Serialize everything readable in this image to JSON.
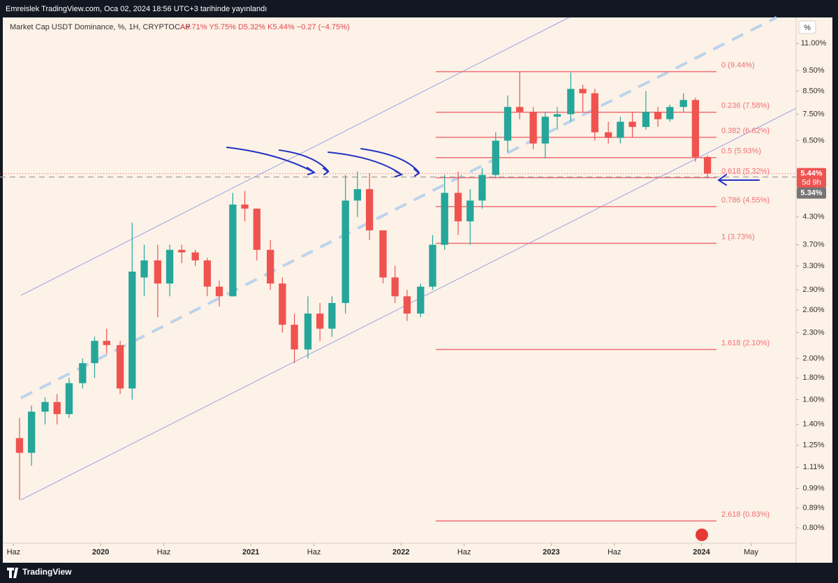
{
  "header": {
    "text": "Emreislek TradingView.com, Oca 02, 2024 18:56 UTC+3 tarihinde yayınlandı"
  },
  "chart_data": {
    "type": "candlestick",
    "symbol": "Market Cap USDT Dominance, %, 1H, CRYPTOCAP",
    "ohlc_text": "A5.71% Y5.75% D5.32% K5.44% −0.27 (−4.75%)",
    "unit": "%",
    "log_scale": true,
    "x": [
      2019.46,
      2019.54,
      2019.63,
      2019.71,
      2019.79,
      2019.88,
      2019.96,
      2020.04,
      2020.13,
      2020.21,
      2020.29,
      2020.38,
      2020.46,
      2020.54,
      2020.63,
      2020.71,
      2020.79,
      2020.88,
      2020.96,
      2021.04,
      2021.13,
      2021.21,
      2021.29,
      2021.38,
      2021.46,
      2021.54,
      2021.63,
      2021.71,
      2021.79,
      2021.88,
      2021.96,
      2022.04,
      2022.13,
      2022.21,
      2022.29,
      2022.38,
      2022.46,
      2022.54,
      2022.63,
      2022.71,
      2022.79,
      2022.88,
      2022.96,
      2023.04,
      2023.13,
      2023.21,
      2023.29,
      2023.38,
      2023.46,
      2023.54,
      2023.63,
      2023.71,
      2023.79,
      2023.88,
      2023.96,
      2024.04
    ],
    "open": [
      1.3,
      1.2,
      1.5,
      1.58,
      1.48,
      1.75,
      1.95,
      2.2,
      2.15,
      1.7,
      3.1,
      3.4,
      3.0,
      3.6,
      3.55,
      3.4,
      2.95,
      2.8,
      4.6,
      4.5,
      3.6,
      3.0,
      2.4,
      2.1,
      2.55,
      2.35,
      2.7,
      4.7,
      5.0,
      4.0,
      3.1,
      2.8,
      2.55,
      2.95,
      3.7,
      4.9,
      4.2,
      4.7,
      5.4,
      6.5,
      7.8,
      7.6,
      6.4,
      7.4,
      7.5,
      8.6,
      8.4,
      6.8,
      6.6,
      7.2,
      7.0,
      7.6,
      7.3,
      7.8,
      8.1,
      5.95
    ],
    "high": [
      1.45,
      1.55,
      1.62,
      1.65,
      1.8,
      2.0,
      2.25,
      2.35,
      2.2,
      4.17,
      3.7,
      3.7,
      3.7,
      3.7,
      3.6,
      3.45,
      3.05,
      4.9,
      4.95,
      4.5,
      3.8,
      3.1,
      2.55,
      2.8,
      2.7,
      2.8,
      5.4,
      5.5,
      5.45,
      4.0,
      3.3,
      2.9,
      3.0,
      3.9,
      5.4,
      5.5,
      5.0,
      5.6,
      6.8,
      8.3,
      9.44,
      7.8,
      7.6,
      7.8,
      9.4,
      8.8,
      8.6,
      7.2,
      7.4,
      7.6,
      8.5,
      7.8,
      7.9,
      8.4,
      8.2,
      6.0
    ],
    "low": [
      0.93,
      1.12,
      1.4,
      1.4,
      1.45,
      1.7,
      1.8,
      2.05,
      1.65,
      1.6,
      2.8,
      2.5,
      2.8,
      3.35,
      3.3,
      2.8,
      2.65,
      2.8,
      4.2,
      3.4,
      2.9,
      2.3,
      1.95,
      2.0,
      2.2,
      2.25,
      2.55,
      4.3,
      3.8,
      3.0,
      2.7,
      2.45,
      2.5,
      2.9,
      3.6,
      3.9,
      3.7,
      4.5,
      5.3,
      6.1,
      7.3,
      6.2,
      5.9,
      6.9,
      7.2,
      7.6,
      6.5,
      6.4,
      6.4,
      6.6,
      6.9,
      7.0,
      7.2,
      7.6,
      5.8,
      5.3
    ],
    "close": [
      1.2,
      1.5,
      1.58,
      1.48,
      1.75,
      1.95,
      2.2,
      2.15,
      1.7,
      3.2,
      3.4,
      3.0,
      3.6,
      3.55,
      3.4,
      2.95,
      2.8,
      4.6,
      4.5,
      3.6,
      3.0,
      2.4,
      2.1,
      2.55,
      2.35,
      2.7,
      4.7,
      5.0,
      4.0,
      3.1,
      2.8,
      2.55,
      2.95,
      3.7,
      4.9,
      4.2,
      4.7,
      5.4,
      6.5,
      7.8,
      7.6,
      6.4,
      7.4,
      7.5,
      8.6,
      8.4,
      6.8,
      6.6,
      7.2,
      7.0,
      7.6,
      7.3,
      7.8,
      8.1,
      5.95,
      5.44
    ],
    "up_color": "#26a69a",
    "down_color": "#ef5350",
    "xlim": [
      2019.33,
      2024.63
    ],
    "xticks": [
      {
        "value": 2019.42,
        "label": "Haz"
      },
      2020,
      {
        "value": 2020.42,
        "label": "Haz"
      },
      2021,
      {
        "value": 2021.42,
        "label": "Haz"
      },
      2022,
      {
        "value": 2022.42,
        "label": "Haz"
      },
      2023,
      {
        "value": 2023.42,
        "label": "Haz"
      },
      2024,
      {
        "value": 2024.33,
        "label": "May"
      }
    ],
    "ylim": [
      0.736,
      12.66
    ],
    "yticks": [
      {
        "value": 11,
        "label": "11.00%"
      },
      {
        "value": 9.5,
        "label": "9.50%"
      },
      {
        "value": 8.5,
        "label": "8.50%"
      },
      {
        "value": 7.5,
        "label": "7.50%"
      },
      {
        "value": 6.5,
        "label": "6.50%"
      },
      {
        "value": 4.3,
        "label": "4.30%"
      },
      {
        "value": 3.7,
        "label": "3.70%"
      },
      {
        "value": 3.3,
        "label": "3.30%"
      },
      {
        "value": 2.9,
        "label": "2.90%"
      },
      {
        "value": 2.6,
        "label": "2.60%"
      },
      {
        "value": 2.3,
        "label": "2.30%"
      },
      {
        "value": 2,
        "label": "2.00%"
      },
      {
        "value": 1.8,
        "label": "1.80%"
      },
      {
        "value": 1.6,
        "label": "1.60%"
      },
      {
        "value": 1.4,
        "label": "1.40%"
      },
      {
        "value": 1.25,
        "label": "1.25%"
      },
      {
        "value": 1.11,
        "label": "1.11%"
      },
      {
        "value": 0.99,
        "label": "0.99%"
      },
      {
        "value": 0.89,
        "label": "0.89%"
      },
      {
        "value": 0.8,
        "label": "0.80%"
      }
    ],
    "fib_levels": [
      {
        "value": 9.44,
        "label": "0 (9.44%)"
      },
      {
        "value": 7.58,
        "label": "0.236 (7.58%)"
      },
      {
        "value": 6.62,
        "label": "0.382 (6.62%)"
      },
      {
        "value": 5.93,
        "label": "0.5 (5.93%)"
      },
      {
        "value": 5.32,
        "label": "0.618 (5.32%)"
      },
      {
        "value": 4.55,
        "label": "0.786 (4.55%)"
      },
      {
        "value": 3.73,
        "label": "1 (3.73%)"
      },
      {
        "value": 2.1,
        "label": "1.618 (2.10%)"
      },
      {
        "value": 0.83,
        "label": "2.618 (0.83%)"
      }
    ],
    "fib_color": "#ef6f75",
    "last_price": {
      "value": 5.44,
      "label": "5.44%"
    },
    "countdown": "5d 9h",
    "ref_price": {
      "value": 5.34,
      "label": "5.34%"
    }
  },
  "footer": {
    "brand": "TradingView"
  }
}
